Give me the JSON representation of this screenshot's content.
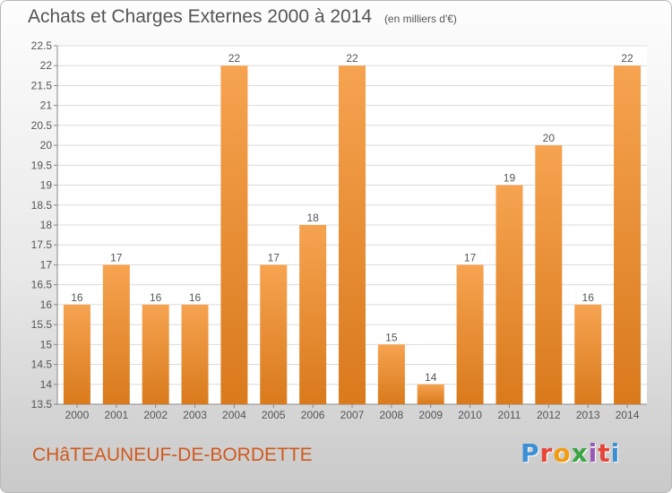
{
  "header": {
    "title": "Achats et Charges Externes 2000 à 2014",
    "subtitle": "(en milliers d'€)"
  },
  "footer": {
    "location": "CHâTEAUNEUF-DE-BORDETTE",
    "logo": "Proxiti",
    "logo_colors": [
      "#3a8fd6",
      "#e8443a",
      "#f39c12",
      "#3aa544",
      "#9b59b6",
      "#e8443a",
      "#3a8fd6"
    ]
  },
  "colors": {
    "bar_light": "#f6a350",
    "bar_dark": "#d97a1c",
    "grid": "#dcdcdc",
    "text": "#555555"
  },
  "chart_data": {
    "type": "bar",
    "categories": [
      "2000",
      "2001",
      "2002",
      "2003",
      "2004",
      "2005",
      "2006",
      "2007",
      "2008",
      "2009",
      "2010",
      "2011",
      "2012",
      "2013",
      "2014"
    ],
    "values": [
      16,
      17,
      16,
      16,
      22,
      17,
      18,
      22,
      15,
      14,
      17,
      19,
      20,
      16,
      22
    ],
    "ylim": [
      13.5,
      22.5
    ],
    "yticks": [
      "13.5",
      "14",
      "14.5",
      "15",
      "15.5",
      "16",
      "16.5",
      "17",
      "17.5",
      "18",
      "18.5",
      "19",
      "19.5",
      "20",
      "20.5",
      "21",
      "21.5",
      "22",
      "22.5"
    ],
    "grid": true,
    "legend": "none",
    "xlabel": "",
    "ylabel": ""
  }
}
